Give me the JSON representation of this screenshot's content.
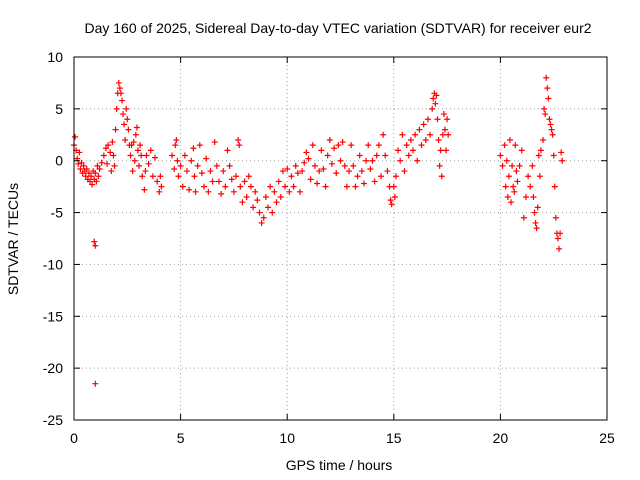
{
  "chart_data": {
    "type": "scatter",
    "title": "Day 160 of 2025, Sidereal Day-to-day VTEC variation (SDTVAR) for receiver eur2",
    "xlabel": "GPS time / hours",
    "ylabel": "SDTVAR / TECUs",
    "xlim": [
      0,
      25
    ],
    "ylim": [
      -25,
      10
    ],
    "xticks": [
      0,
      5,
      10,
      15,
      20,
      25
    ],
    "yticks": [
      -25,
      -20,
      -15,
      -10,
      -5,
      0,
      5,
      10
    ],
    "grid": true,
    "marker": "+",
    "series": [
      {
        "name": "SDTVAR",
        "color": "#ff0000",
        "points": [
          [
            0.0,
            1.5
          ],
          [
            0.05,
            2.3
          ],
          [
            0.1,
            1.0
          ],
          [
            0.15,
            0.2
          ],
          [
            0.2,
            -0.3
          ],
          [
            0.25,
            0.8
          ],
          [
            0.3,
            -0.8
          ],
          [
            0.35,
            -0.2
          ],
          [
            0.4,
            -1.2
          ],
          [
            0.45,
            -0.5
          ],
          [
            0.5,
            -1.0
          ],
          [
            0.55,
            -1.5
          ],
          [
            0.6,
            -0.8
          ],
          [
            0.65,
            -1.8
          ],
          [
            0.7,
            -1.2
          ],
          [
            0.75,
            -2.0
          ],
          [
            0.8,
            -1.5
          ],
          [
            0.85,
            -2.3
          ],
          [
            0.9,
            -1.0
          ],
          [
            0.95,
            -1.8
          ],
          [
            1.0,
            -1.2
          ],
          [
            1.05,
            -2.0
          ],
          [
            1.1,
            -0.5
          ],
          [
            1.15,
            -1.5
          ],
          [
            1.2,
            -0.8
          ],
          [
            0.95,
            -7.8
          ],
          [
            1.0,
            -8.2
          ],
          [
            1.0,
            -21.5
          ],
          [
            1.3,
            -0.2
          ],
          [
            1.4,
            0.5
          ],
          [
            1.5,
            1.2
          ],
          [
            1.55,
            -0.3
          ],
          [
            1.6,
            1.5
          ],
          [
            1.7,
            0.8
          ],
          [
            1.75,
            -1.0
          ],
          [
            1.8,
            1.8
          ],
          [
            1.85,
            0.5
          ],
          [
            1.9,
            -0.5
          ],
          [
            1.95,
            3.0
          ],
          [
            2.0,
            5.0
          ],
          [
            2.05,
            6.5
          ],
          [
            2.1,
            7.5
          ],
          [
            2.15,
            7.0
          ],
          [
            2.2,
            6.5
          ],
          [
            2.25,
            5.8
          ],
          [
            2.3,
            4.5
          ],
          [
            2.35,
            3.5
          ],
          [
            2.4,
            2.0
          ],
          [
            2.45,
            5.0
          ],
          [
            2.5,
            4.0
          ],
          [
            2.55,
            3.0
          ],
          [
            2.6,
            1.5
          ],
          [
            2.65,
            0.5
          ],
          [
            2.7,
            1.5
          ],
          [
            2.75,
            -1.0
          ],
          [
            2.8,
            1.8
          ],
          [
            2.85,
            0.0
          ],
          [
            2.9,
            2.5
          ],
          [
            2.95,
            3.2
          ],
          [
            3.0,
            1.0
          ],
          [
            3.05,
            -0.5
          ],
          [
            3.1,
            1.5
          ],
          [
            3.15,
            0.5
          ],
          [
            3.2,
            -1.5
          ],
          [
            3.3,
            -2.8
          ],
          [
            3.35,
            -1.0
          ],
          [
            3.4,
            0.5
          ],
          [
            3.5,
            -0.3
          ],
          [
            3.6,
            1.0
          ],
          [
            3.7,
            -1.5
          ],
          [
            3.8,
            0.3
          ],
          [
            3.9,
            -2.0
          ],
          [
            4.0,
            -3.0
          ],
          [
            4.05,
            -1.5
          ],
          [
            4.1,
            -2.5
          ],
          [
            4.6,
            0.5
          ],
          [
            4.7,
            -0.8
          ],
          [
            4.75,
            1.5
          ],
          [
            4.8,
            2.0
          ],
          [
            4.85,
            0.0
          ],
          [
            4.9,
            -1.5
          ],
          [
            5.0,
            -0.5
          ],
          [
            5.1,
            -2.5
          ],
          [
            5.2,
            0.5
          ],
          [
            5.3,
            -1.0
          ],
          [
            5.4,
            -2.8
          ],
          [
            5.5,
            0.0
          ],
          [
            5.6,
            1.2
          ],
          [
            5.65,
            -1.5
          ],
          [
            5.7,
            -3.0
          ],
          [
            5.8,
            -0.5
          ],
          [
            5.9,
            1.5
          ],
          [
            6.0,
            -1.2
          ],
          [
            6.1,
            -2.5
          ],
          [
            6.2,
            0.2
          ],
          [
            6.3,
            -3.0
          ],
          [
            6.4,
            -1.0
          ],
          [
            6.5,
            -2.0
          ],
          [
            6.6,
            1.8
          ],
          [
            6.7,
            -0.5
          ],
          [
            6.8,
            -2.0
          ],
          [
            6.9,
            -3.2
          ],
          [
            7.0,
            -1.0
          ],
          [
            7.1,
            -2.5
          ],
          [
            7.2,
            1.0
          ],
          [
            7.3,
            -0.5
          ],
          [
            7.4,
            -1.8
          ],
          [
            7.5,
            -3.0
          ],
          [
            7.6,
            -1.5
          ],
          [
            7.7,
            2.0
          ],
          [
            7.75,
            1.5
          ],
          [
            7.8,
            -2.5
          ],
          [
            7.9,
            -4.0
          ],
          [
            8.0,
            -2.0
          ],
          [
            8.1,
            -3.5
          ],
          [
            8.2,
            -1.5
          ],
          [
            8.3,
            -2.5
          ],
          [
            8.4,
            -4.5
          ],
          [
            8.5,
            -3.0
          ],
          [
            8.6,
            -3.8
          ],
          [
            8.7,
            -5.0
          ],
          [
            8.8,
            -6.0
          ],
          [
            8.9,
            -5.5
          ],
          [
            9.0,
            -3.5
          ],
          [
            9.1,
            -4.5
          ],
          [
            9.2,
            -2.5
          ],
          [
            9.3,
            -5.0
          ],
          [
            9.4,
            -3.0
          ],
          [
            9.5,
            -4.0
          ],
          [
            9.6,
            -2.0
          ],
          [
            9.7,
            -3.5
          ],
          [
            9.8,
            -1.0
          ],
          [
            9.9,
            -2.5
          ],
          [
            10.0,
            -0.8
          ],
          [
            10.1,
            -3.0
          ],
          [
            10.2,
            -1.5
          ],
          [
            10.3,
            -2.5
          ],
          [
            10.4,
            -0.5
          ],
          [
            10.5,
            -1.2
          ],
          [
            10.6,
            -3.0
          ],
          [
            10.7,
            -1.0
          ],
          [
            10.8,
            -0.2
          ],
          [
            10.9,
            0.8
          ],
          [
            11.0,
            0.2
          ],
          [
            11.1,
            -1.8
          ],
          [
            11.2,
            1.5
          ],
          [
            11.3,
            -0.5
          ],
          [
            11.4,
            -2.2
          ],
          [
            11.5,
            -1.0
          ],
          [
            11.6,
            1.0
          ],
          [
            11.7,
            -0.8
          ],
          [
            11.8,
            -2.5
          ],
          [
            11.9,
            0.5
          ],
          [
            12.0,
            2.0
          ],
          [
            12.1,
            -0.3
          ],
          [
            12.2,
            1.2
          ],
          [
            12.3,
            -1.2
          ],
          [
            12.4,
            1.5
          ],
          [
            12.5,
            0.0
          ],
          [
            12.6,
            1.8
          ],
          [
            12.7,
            -0.5
          ],
          [
            12.8,
            -2.5
          ],
          [
            12.9,
            -1.0
          ],
          [
            13.0,
            1.5
          ],
          [
            13.1,
            -0.5
          ],
          [
            13.2,
            -2.5
          ],
          [
            13.3,
            -1.5
          ],
          [
            13.4,
            0.5
          ],
          [
            13.5,
            -1.0
          ],
          [
            13.6,
            -2.2
          ],
          [
            13.7,
            0.0
          ],
          [
            13.8,
            1.5
          ],
          [
            13.9,
            -0.8
          ],
          [
            14.0,
            0.0
          ],
          [
            14.1,
            -2.0
          ],
          [
            14.2,
            0.5
          ],
          [
            14.3,
            1.5
          ],
          [
            14.4,
            -1.5
          ],
          [
            14.5,
            2.5
          ],
          [
            14.6,
            0.5
          ],
          [
            14.7,
            -1.0
          ],
          [
            14.8,
            -2.5
          ],
          [
            14.85,
            -3.8
          ],
          [
            14.9,
            -4.2
          ],
          [
            15.0,
            -2.5
          ],
          [
            15.05,
            -3.5
          ],
          [
            15.1,
            -1.5
          ],
          [
            15.2,
            1.0
          ],
          [
            15.3,
            0.0
          ],
          [
            15.4,
            2.5
          ],
          [
            15.5,
            -1.0
          ],
          [
            15.6,
            1.5
          ],
          [
            15.7,
            0.5
          ],
          [
            15.8,
            2.0
          ],
          [
            15.9,
            1.0
          ],
          [
            16.0,
            2.5
          ],
          [
            16.1,
            0.0
          ],
          [
            16.2,
            3.0
          ],
          [
            16.3,
            1.5
          ],
          [
            16.4,
            3.5
          ],
          [
            16.5,
            2.0
          ],
          [
            16.6,
            4.0
          ],
          [
            16.7,
            2.5
          ],
          [
            16.8,
            5.0
          ],
          [
            16.85,
            6.0
          ],
          [
            16.9,
            6.5
          ],
          [
            16.95,
            5.5
          ],
          [
            17.0,
            6.3
          ],
          [
            17.05,
            4.0
          ],
          [
            17.1,
            2.0
          ],
          [
            17.15,
            -0.5
          ],
          [
            17.2,
            1.0
          ],
          [
            17.25,
            -1.5
          ],
          [
            17.3,
            2.5
          ],
          [
            17.35,
            4.5
          ],
          [
            17.4,
            3.0
          ],
          [
            17.45,
            1.0
          ],
          [
            17.5,
            4.0
          ],
          [
            17.55,
            2.5
          ],
          [
            20.0,
            0.5
          ],
          [
            20.1,
            -0.5
          ],
          [
            20.2,
            1.5
          ],
          [
            20.25,
            -2.5
          ],
          [
            20.3,
            0.0
          ],
          [
            20.35,
            -3.5
          ],
          [
            20.4,
            -1.5
          ],
          [
            20.45,
            2.0
          ],
          [
            20.5,
            -4.0
          ],
          [
            20.55,
            -0.5
          ],
          [
            20.6,
            -2.5
          ],
          [
            20.65,
            -3.0
          ],
          [
            20.7,
            1.5
          ],
          [
            20.75,
            -1.0
          ],
          [
            20.8,
            -2.0
          ],
          [
            20.9,
            -0.5
          ],
          [
            21.0,
            1.0
          ],
          [
            21.1,
            -5.5
          ],
          [
            21.2,
            -3.5
          ],
          [
            21.3,
            -1.5
          ],
          [
            21.4,
            -2.5
          ],
          [
            21.5,
            -0.5
          ],
          [
            21.55,
            -3.5
          ],
          [
            21.6,
            -5.0
          ],
          [
            21.65,
            -6.0
          ],
          [
            21.7,
            -6.5
          ],
          [
            21.75,
            -4.5
          ],
          [
            21.8,
            0.5
          ],
          [
            21.85,
            -1.5
          ],
          [
            21.9,
            1.0
          ],
          [
            22.0,
            2.0
          ],
          [
            22.05,
            5.0
          ],
          [
            22.1,
            4.5
          ],
          [
            22.15,
            8.0
          ],
          [
            22.2,
            7.0
          ],
          [
            22.25,
            6.0
          ],
          [
            22.3,
            4.0
          ],
          [
            22.35,
            3.5
          ],
          [
            22.4,
            3.0
          ],
          [
            22.45,
            2.5
          ],
          [
            22.5,
            0.5
          ],
          [
            22.55,
            -2.5
          ],
          [
            22.6,
            -5.5
          ],
          [
            22.65,
            -7.0
          ],
          [
            22.7,
            -7.5
          ],
          [
            22.75,
            -8.5
          ],
          [
            22.8,
            -7.0
          ],
          [
            22.85,
            0.8
          ],
          [
            22.9,
            0.0
          ]
        ]
      }
    ]
  }
}
